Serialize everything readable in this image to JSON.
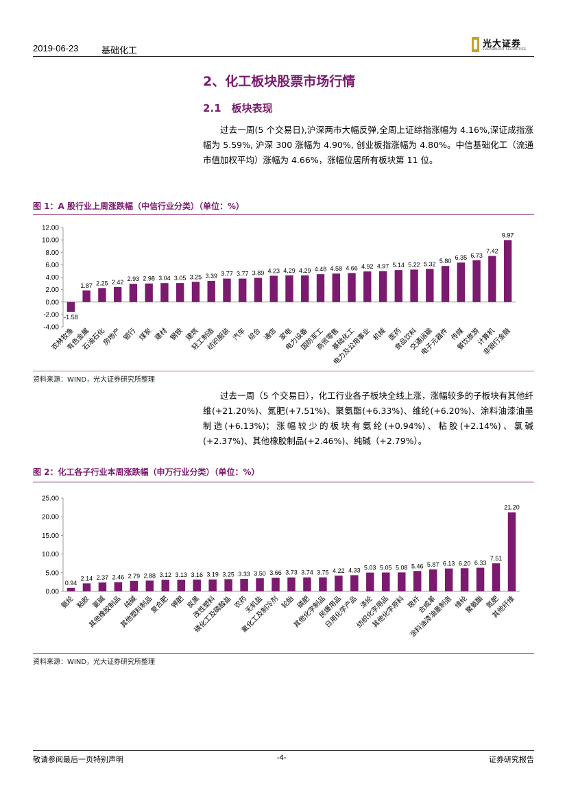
{
  "header": {
    "date": "2019-06-23",
    "sector": "基础化工",
    "logo_cn": "光大证券",
    "logo_en": "EVERBRIGHT SECURITIES"
  },
  "section": {
    "title": "2、化工板块股票市场行情",
    "subtitle": "2.1　板块表现"
  },
  "paragraph1": "过去一周(5 个交易日),沪深两市大幅反弹,全周上证综指涨幅为 4.16%,深证成指涨幅为 5.59%, 沪深 300 涨幅为 4.90%, 创业板指涨幅为 4.80%。中信基础化工（流通市值加权平均）涨幅为 4.66%，涨幅位居所有板块第 11 位。",
  "paragraph2": "过去一周（5 个交易日），化工行业各子板块全线上涨，涨幅较多的子板块有其他纤维(+21.20%)、氮肥(+7.51%)、聚氨酯(+6.33%)、维纶(+6.20%)、涂料油漆油墨制造(+6.13%)；涨幅较少的板块有氨纶(+0.94%)、粘胶(+2.14%)、氯碱(+2.37%)、其他橡胶制品(+2.46%)、纯碱（+2.79%）。",
  "figure1": {
    "title": "图 1：A 股行业上周涨跌幅（中信行业分类）（单位：%）",
    "source": "资料来源：WIND，光大证券研究所整理"
  },
  "figure2": {
    "title": "图 2：化工各子行业本周涨跌幅（申万行业分类）（单位：%）",
    "source": "资料来源：WIND，光大证券研究所整理"
  },
  "chart_data": [
    {
      "type": "bar",
      "title": "A 股行业上周涨跌幅（中信行业分类）",
      "categories": [
        "农林牧渔",
        "有色金属",
        "石油石化",
        "房地产",
        "银行",
        "煤炭",
        "建材",
        "钢铁",
        "建筑",
        "轻工制造",
        "纺织服装",
        "汽车",
        "综合",
        "通信",
        "家电",
        "电力设备",
        "国防军工",
        "商贸零售",
        "基础化工",
        "电力及公用事业",
        "机械",
        "医药",
        "食品饮料",
        "交通运输",
        "电子元器件",
        "传媒",
        "餐饮旅游",
        "计算机",
        "非银行金融"
      ],
      "values": [
        -1.58,
        1.87,
        2.25,
        2.42,
        2.93,
        2.98,
        3.04,
        3.05,
        3.25,
        3.39,
        3.77,
        3.77,
        3.89,
        4.23,
        4.29,
        4.29,
        4.48,
        4.58,
        4.66,
        4.92,
        4.97,
        5.14,
        5.22,
        5.32,
        5.8,
        6.35,
        6.73,
        7.42,
        9.97
      ],
      "value_labels": [
        "-1.58",
        "1.87",
        "2.25",
        "2.42",
        "2.93",
        "2.98",
        "3.04",
        "3.05",
        "3.25",
        "3.39",
        "3.77",
        "3.77",
        "3.89",
        "4.23",
        "4.29",
        "4.29",
        "4.48",
        "4.58",
        "4.66",
        "4.92",
        "4.97",
        "5.14",
        "5.22",
        "5.32",
        "5.80",
        "6.35",
        "6.73",
        "7.42",
        "9.97"
      ],
      "ylim": [
        -4,
        12
      ],
      "yticks": [
        "12.00",
        "10.00",
        "8.00",
        "6.00",
        "4.00",
        "2.00",
        "0.00",
        "-2.00",
        "-4.00"
      ],
      "bar_color": "#7b1a6e"
    },
    {
      "type": "bar",
      "title": "化工各子行业本周涨跌幅（申万行业分类）",
      "categories": [
        "氨纶",
        "粘胶",
        "氯碱",
        "其他橡胶制品",
        "纯碱",
        "其他塑料制品",
        "复合肥",
        "钾肥",
        "炭黑",
        "改性塑料",
        "磷化工及磷酸盐",
        "农药",
        "无机盐",
        "氟化工及制冷剂",
        "轮胎",
        "磷肥",
        "其他化学制品",
        "民爆用品",
        "日用化学产品",
        "涤纶",
        "纺织化学用品",
        "其他化学原料",
        "玻纤",
        "合成革",
        "涂料油漆油墨制造",
        "维纶",
        "聚氨酯",
        "氮肥",
        "其他纤维"
      ],
      "values": [
        0.94,
        2.14,
        2.37,
        2.46,
        2.79,
        2.88,
        3.12,
        3.13,
        3.16,
        3.19,
        3.25,
        3.33,
        3.5,
        3.66,
        3.73,
        3.74,
        3.75,
        4.22,
        4.33,
        5.03,
        5.05,
        5.08,
        5.46,
        5.87,
        6.13,
        6.2,
        6.33,
        7.51,
        21.2
      ],
      "value_labels": [
        "0.94",
        "2.14",
        "2.37",
        "2.46",
        "2.79",
        "2.88",
        "3.12",
        "3.13",
        "3.16",
        "3.19",
        "3.25",
        "3.33",
        "3.50",
        "3.66",
        "3.73",
        "3.74",
        "3.75",
        "4.22",
        "4.33",
        "5.03",
        "5.05",
        "5.08",
        "5.46",
        "5.87",
        "6.13",
        "6.20",
        "6.33",
        "7.51",
        "21.20"
      ],
      "ylim": [
        0,
        25
      ],
      "yticks": [
        "25.00",
        "20.00",
        "15.00",
        "10.00",
        "5.00",
        "0.00"
      ],
      "bar_color": "#7b1a6e"
    }
  ],
  "footer": {
    "disclaimer": "敬请参阅最后一页特别声明",
    "page": "-4-",
    "doc_type": "证券研究报告"
  }
}
